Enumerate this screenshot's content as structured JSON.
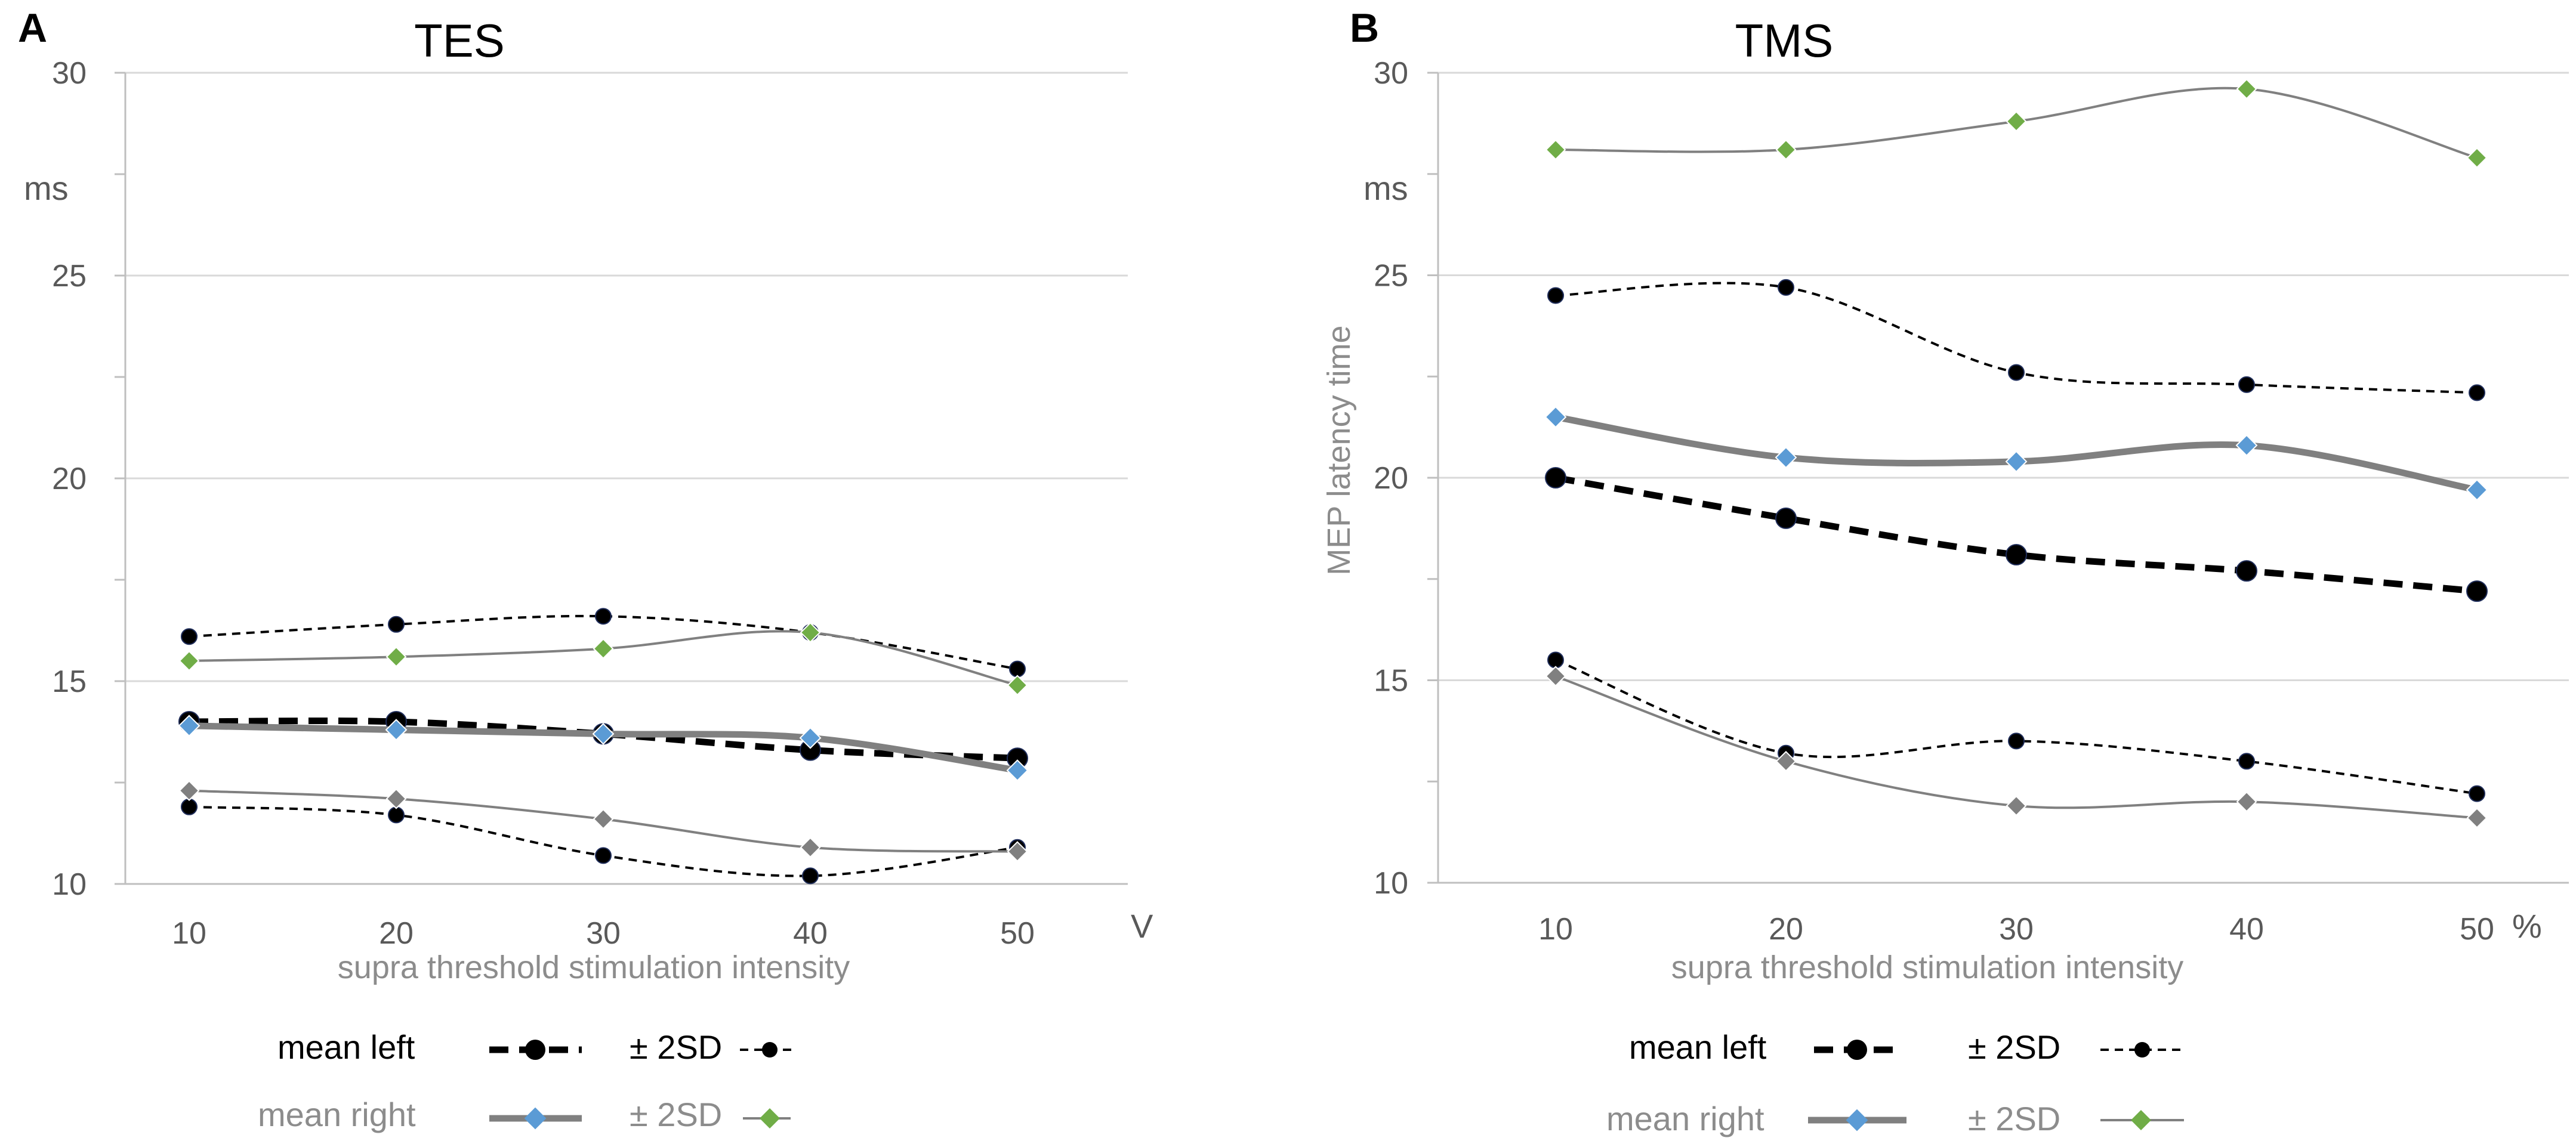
{
  "panels": [
    {
      "panel_label": "A",
      "title": "TES",
      "unit_label": "ms",
      "y_axis_title": "",
      "x_axis_title": "supra threshold stimulation intensity",
      "x_unit": "V",
      "x_ticks": [
        "10",
        "20",
        "30",
        "40",
        "50"
      ],
      "y_ticks": [
        "10",
        "15",
        "20",
        "25",
        "30"
      ]
    },
    {
      "panel_label": "B",
      "title": "TMS",
      "unit_label": "ms",
      "y_axis_title": "MEP latency time",
      "x_axis_title": "supra threshold stimulation intensity",
      "x_unit": "%",
      "x_ticks": [
        "10",
        "20",
        "30",
        "40",
        "50"
      ],
      "y_ticks": [
        "10",
        "15",
        "20",
        "25",
        "30"
      ]
    }
  ],
  "legend": {
    "mean_left": "mean left",
    "sd_left": "± 2SD",
    "mean_right": "mean right",
    "sd_right": "± 2SD"
  },
  "colors": {
    "mean_left": "#000000",
    "mean_right": "#808080",
    "marker_blue": "#5b9bd5",
    "marker_green": "#70ad47",
    "marker_gray": "#808080",
    "grid": "#d9d9d9",
    "axis_text": "#595959",
    "label_text": "#8c8c8c"
  },
  "chart_data": [
    {
      "type": "line",
      "title": "TES",
      "xlabel": "supra threshold stimulation intensity (V)",
      "ylabel": "ms",
      "ylim": [
        10,
        30
      ],
      "x": [
        10,
        20,
        30,
        40,
        50
      ],
      "series": [
        {
          "name": "mean left",
          "values": [
            14.0,
            14.0,
            13.7,
            13.3,
            13.1
          ]
        },
        {
          "name": "mean left + 2SD",
          "values": [
            16.1,
            16.4,
            16.6,
            16.2,
            15.3
          ]
        },
        {
          "name": "mean left - 2SD",
          "values": [
            11.9,
            11.7,
            10.7,
            10.2,
            10.9
          ]
        },
        {
          "name": "mean right",
          "values": [
            13.9,
            13.8,
            13.7,
            13.6,
            12.8
          ]
        },
        {
          "name": "mean right + 2SD",
          "values": [
            15.5,
            15.6,
            15.8,
            16.2,
            14.9
          ]
        },
        {
          "name": "mean right - 2SD",
          "values": [
            12.3,
            12.1,
            11.6,
            10.9,
            10.8
          ]
        }
      ]
    },
    {
      "type": "line",
      "title": "TMS",
      "xlabel": "supra threshold stimulation intensity (%)",
      "ylabel": "MEP latency time (ms)",
      "ylim": [
        10,
        30
      ],
      "x": [
        10,
        20,
        30,
        40,
        50
      ],
      "series": [
        {
          "name": "mean left",
          "values": [
            20.0,
            19.0,
            18.1,
            17.7,
            17.2
          ]
        },
        {
          "name": "mean left + 2SD",
          "values": [
            24.5,
            24.7,
            22.6,
            22.3,
            22.1
          ]
        },
        {
          "name": "mean left - 2SD",
          "values": [
            15.5,
            13.2,
            13.5,
            13.0,
            12.2
          ]
        },
        {
          "name": "mean right",
          "values": [
            21.5,
            20.5,
            20.4,
            20.8,
            19.7
          ]
        },
        {
          "name": "mean right + 2SD",
          "values": [
            28.1,
            28.1,
            28.8,
            29.6,
            27.9
          ]
        },
        {
          "name": "mean right - 2SD",
          "values": [
            15.1,
            13.0,
            11.9,
            12.0,
            11.6
          ]
        }
      ]
    }
  ]
}
